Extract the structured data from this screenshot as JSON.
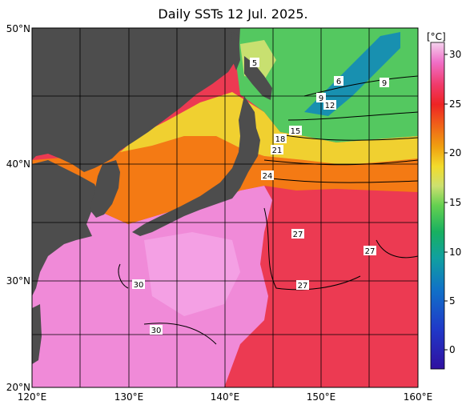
{
  "title": "Daily SSTs 12 Jul. 2025.",
  "axes": {
    "lat": [
      "50°N",
      "40°N",
      "30°N",
      "20°N"
    ],
    "lon": [
      "120°E",
      "130°E",
      "140°E",
      "150°E",
      "160°E"
    ]
  },
  "colorbar": {
    "unit": "[°C]",
    "ticks": [
      "30",
      "25",
      "20",
      "15",
      "10",
      "5",
      "0"
    ],
    "colors": [
      "#e0b8e6",
      "#f07ad0",
      "#f04a70",
      "#ee2a2a",
      "#f06818",
      "#f0a010",
      "#f0d820",
      "#c8e070",
      "#68d050",
      "#18b060",
      "#10a0a0",
      "#1070c8",
      "#2038c8",
      "#3010a0"
    ]
  },
  "contour_labels": [
    {
      "text": "5"
    },
    {
      "text": "6"
    },
    {
      "text": "9"
    },
    {
      "text": "9"
    },
    {
      "text": "12"
    },
    {
      "text": "15"
    },
    {
      "text": "18"
    },
    {
      "text": "21"
    },
    {
      "text": "24"
    },
    {
      "text": "27"
    },
    {
      "text": "27"
    },
    {
      "text": "27"
    },
    {
      "text": "30"
    },
    {
      "text": "30"
    }
  ],
  "colors": {
    "land": "#4d4d4d",
    "warm_pool": "#f28ad8",
    "subtropical": "#ec3450",
    "kuroshio_ext": "#f47a14",
    "front_yellow": "#f0d030",
    "cold_green": "#50c860",
    "cold_blue": "#1890b0",
    "grid": "#000000"
  }
}
